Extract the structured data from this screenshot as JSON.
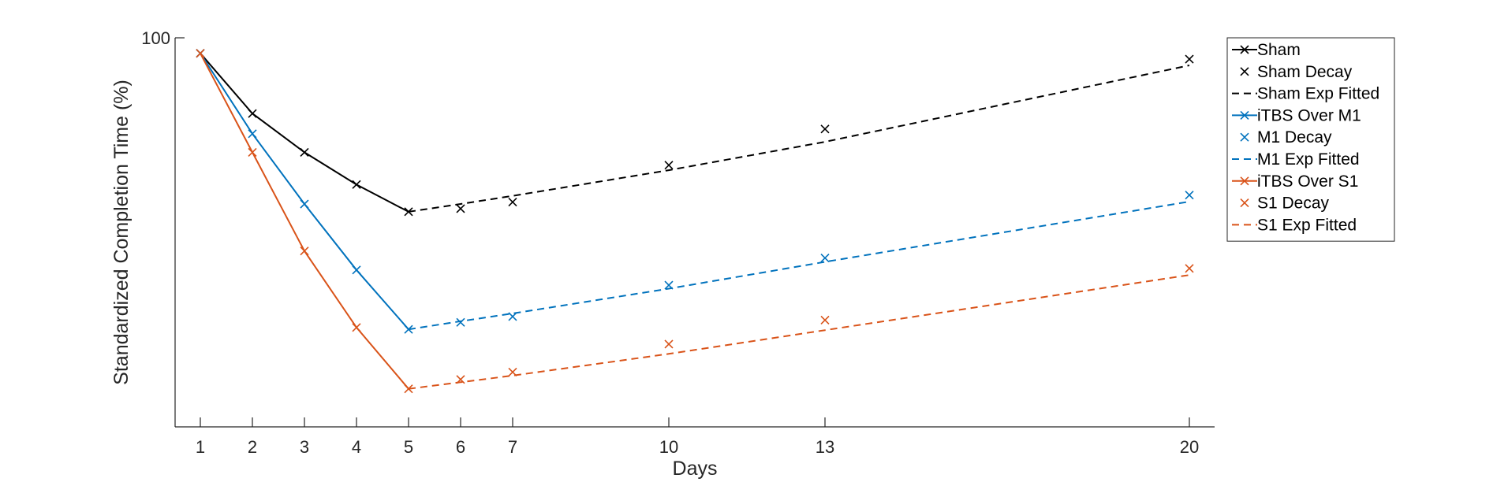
{
  "chart_data": {
    "type": "line",
    "xlabel": "Days",
    "ylabel": "Standardized Completion Time (%)",
    "x_ticks": [
      1,
      2,
      3,
      4,
      5,
      6,
      7,
      10,
      13,
      20
    ],
    "y_ticks": [
      100
    ],
    "xlim": [
      0.5,
      21
    ],
    "ylim": [
      0,
      100
    ],
    "grid": false,
    "legend_position": "top-right",
    "series": [
      {
        "name": "Sham",
        "style": "solid-line-x-marker",
        "color": "#000000",
        "x": [
          1,
          2,
          3,
          4,
          5
        ],
        "y": [
          96,
          80.5,
          70.5,
          62.2,
          55.2
        ]
      },
      {
        "name": "Sham Decay",
        "style": "x-marker-only",
        "color": "#000000",
        "x": [
          6,
          7,
          10,
          13,
          20
        ],
        "y": [
          56,
          57.7,
          67.2,
          76.5,
          94.5
        ]
      },
      {
        "name": "Sham Exp Fitted",
        "style": "dashed-line",
        "color": "#000000",
        "x": [
          5,
          6,
          7,
          10,
          13,
          20
        ],
        "y": [
          55.2,
          57.2,
          59.3,
          65.9,
          73.2,
          92.9
        ]
      },
      {
        "name": "iTBS Over M1",
        "style": "solid-line-x-marker",
        "color": "#0072BD",
        "x": [
          1,
          2,
          3,
          4,
          5
        ],
        "y": [
          96,
          75.3,
          57.2,
          40.2,
          24.9
        ]
      },
      {
        "name": "M1 Decay",
        "style": "x-marker-only",
        "color": "#0072BD",
        "x": [
          6,
          7,
          10,
          13,
          20
        ],
        "y": [
          26.7,
          28.2,
          36.3,
          43.3,
          59.5
        ]
      },
      {
        "name": "M1 Exp Fitted",
        "style": "dashed-line",
        "color": "#0072BD",
        "x": [
          5,
          6,
          7,
          10,
          13,
          20
        ],
        "y": [
          24.9,
          27.0,
          29.0,
          35.4,
          42.3,
          57.8
        ]
      },
      {
        "name": "iTBS Over S1",
        "style": "solid-line-x-marker",
        "color": "#D95319",
        "x": [
          1,
          2,
          3,
          4,
          5
        ],
        "y": [
          96,
          70.5,
          45.1,
          25.4,
          9.6
        ]
      },
      {
        "name": "S1 Decay",
        "style": "x-marker-only",
        "color": "#D95319",
        "x": [
          6,
          7,
          10,
          13,
          20
        ],
        "y": [
          12.0,
          13.9,
          21.1,
          27.3,
          40.6
        ]
      },
      {
        "name": "S1 Exp Fitted",
        "style": "dashed-line",
        "color": "#D95319",
        "x": [
          5,
          6,
          7,
          10,
          13,
          20
        ],
        "y": [
          9.6,
          11.3,
          13.0,
          18.6,
          24.7,
          38.9
        ]
      }
    ]
  }
}
